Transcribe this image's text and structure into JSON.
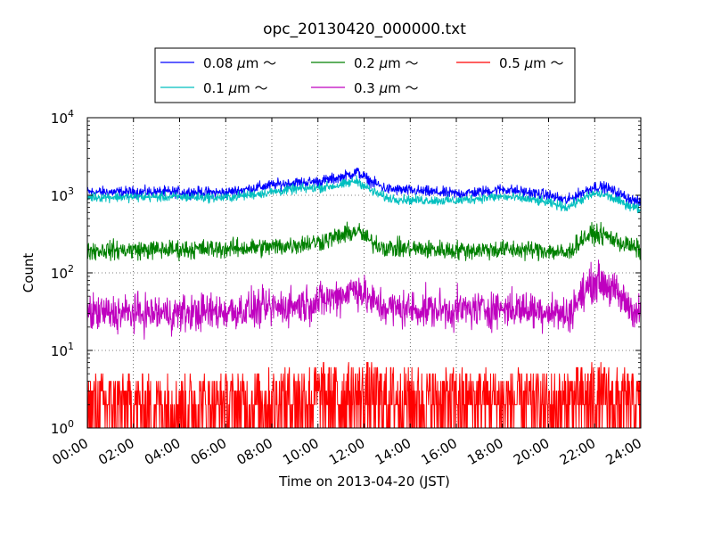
{
  "chart_data": {
    "type": "line",
    "title": "opc_20130420_000000.txt",
    "xlabel": "Time on 2013-04-20 (JST)",
    "ylabel": "Count",
    "x_unit": "hours since 2013-04-20 00:00 JST",
    "xlim": [
      0,
      24
    ],
    "ylim": [
      1,
      10000
    ],
    "yscale": "log",
    "grid": true,
    "legend_position": "top-center, above plot, 3 columns",
    "x_ticks": [
      "00:00",
      "02:00",
      "04:00",
      "06:00",
      "08:00",
      "10:00",
      "12:00",
      "14:00",
      "16:00",
      "18:00",
      "20:00",
      "22:00",
      "24:00"
    ],
    "y_ticks": [
      {
        "base": "10",
        "exp": "0",
        "value": 1
      },
      {
        "base": "10",
        "exp": "1",
        "value": 10
      },
      {
        "base": "10",
        "exp": "2",
        "value": 100
      },
      {
        "base": "10",
        "exp": "3",
        "value": 1000
      },
      {
        "base": "10",
        "exp": "4",
        "value": 10000
      }
    ],
    "series": [
      {
        "name": "0.08 μm ～",
        "label_text": "0.08",
        "color": "#0000ff",
        "noise": 0.035,
        "points": [
          [
            0,
            1100
          ],
          [
            2,
            1100
          ],
          [
            4,
            1100
          ],
          [
            6,
            1080
          ],
          [
            8,
            1350
          ],
          [
            9,
            1450
          ],
          [
            10,
            1500
          ],
          [
            11,
            1700
          ],
          [
            11.7,
            2000
          ],
          [
            12.3,
            1500
          ],
          [
            13,
            1200
          ],
          [
            14,
            1150
          ],
          [
            16,
            1050
          ],
          [
            17,
            1100
          ],
          [
            18,
            1200
          ],
          [
            19,
            1100
          ],
          [
            20,
            1000
          ],
          [
            20.8,
            850
          ],
          [
            21.5,
            1100
          ],
          [
            22,
            1300
          ],
          [
            22.5,
            1250
          ],
          [
            23.2,
            1000
          ],
          [
            24,
            780
          ]
        ]
      },
      {
        "name": "0.1 μm ～",
        "label_text": "0.1",
        "color": "#00bfbf",
        "noise": 0.03,
        "points": [
          [
            0,
            950
          ],
          [
            2,
            950
          ],
          [
            4,
            950
          ],
          [
            6,
            930
          ],
          [
            8,
            1100
          ],
          [
            9,
            1200
          ],
          [
            10,
            1250
          ],
          [
            11,
            1350
          ],
          [
            11.7,
            1550
          ],
          [
            12.3,
            1150
          ],
          [
            13,
            920
          ],
          [
            14,
            870
          ],
          [
            16,
            850
          ],
          [
            17,
            920
          ],
          [
            18,
            960
          ],
          [
            19,
            900
          ],
          [
            20,
            800
          ],
          [
            20.8,
            700
          ],
          [
            21.5,
            900
          ],
          [
            22,
            1050
          ],
          [
            22.5,
            1000
          ],
          [
            23.2,
            800
          ],
          [
            24,
            650
          ]
        ]
      },
      {
        "name": "0.2 μm ～",
        "label_text": "0.2",
        "color": "#008000",
        "noise": 0.06,
        "points": [
          [
            0,
            195
          ],
          [
            4,
            200
          ],
          [
            6,
            205
          ],
          [
            8,
            215
          ],
          [
            9,
            230
          ],
          [
            10,
            250
          ],
          [
            11,
            300
          ],
          [
            11.7,
            350
          ],
          [
            12.3,
            250
          ],
          [
            13,
            210
          ],
          [
            16,
            195
          ],
          [
            18,
            200
          ],
          [
            20,
            195
          ],
          [
            20.8,
            175
          ],
          [
            21.5,
            280
          ],
          [
            22,
            320
          ],
          [
            22.5,
            300
          ],
          [
            23.2,
            240
          ],
          [
            24,
            195
          ]
        ]
      },
      {
        "name": "0.3 μm ～",
        "label_text": "0.3",
        "color": "#bf00bf",
        "noise": 0.12,
        "points": [
          [
            0,
            30
          ],
          [
            4,
            30
          ],
          [
            6,
            32
          ],
          [
            8,
            35
          ],
          [
            9,
            38
          ],
          [
            10,
            42
          ],
          [
            11,
            52
          ],
          [
            11.7,
            65
          ],
          [
            12.3,
            42
          ],
          [
            13,
            35
          ],
          [
            16,
            33
          ],
          [
            18,
            35
          ],
          [
            20,
            33
          ],
          [
            20.8,
            28
          ],
          [
            21.5,
            55
          ],
          [
            22,
            80
          ],
          [
            22.5,
            72
          ],
          [
            23.2,
            45
          ],
          [
            24,
            28
          ]
        ]
      },
      {
        "name": "0.5 μm ～",
        "label_text": "0.5",
        "color": "#ff0000",
        "noise": 0,
        "points": [
          [
            0,
            2
          ],
          [
            6,
            2
          ],
          [
            8,
            2.5
          ],
          [
            10,
            3
          ],
          [
            12,
            3
          ],
          [
            14,
            2.5
          ],
          [
            18,
            2.5
          ],
          [
            20,
            2
          ],
          [
            22,
            3
          ],
          [
            24,
            2
          ]
        ]
      }
    ]
  }
}
